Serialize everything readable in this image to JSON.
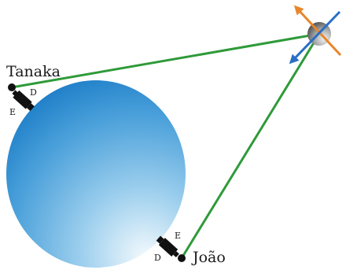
{
  "observers": {
    "left": {
      "name": "Tanaka",
      "label_d": "D",
      "label_e": "E"
    },
    "bottom": {
      "name": "João",
      "label_d": "D",
      "label_e": "E"
    }
  },
  "colors": {
    "sight_line": "#2f9a3a",
    "planet_top": "#1f7fc8",
    "planet_bottom": "#e6f3fb",
    "orange_arrow": "#e8862a",
    "blue_arrow": "#2a6fc4",
    "telescope": "#111111"
  },
  "icons": {
    "observed_object": "moon-sphere-icon",
    "telescope": "telescope-icon"
  }
}
